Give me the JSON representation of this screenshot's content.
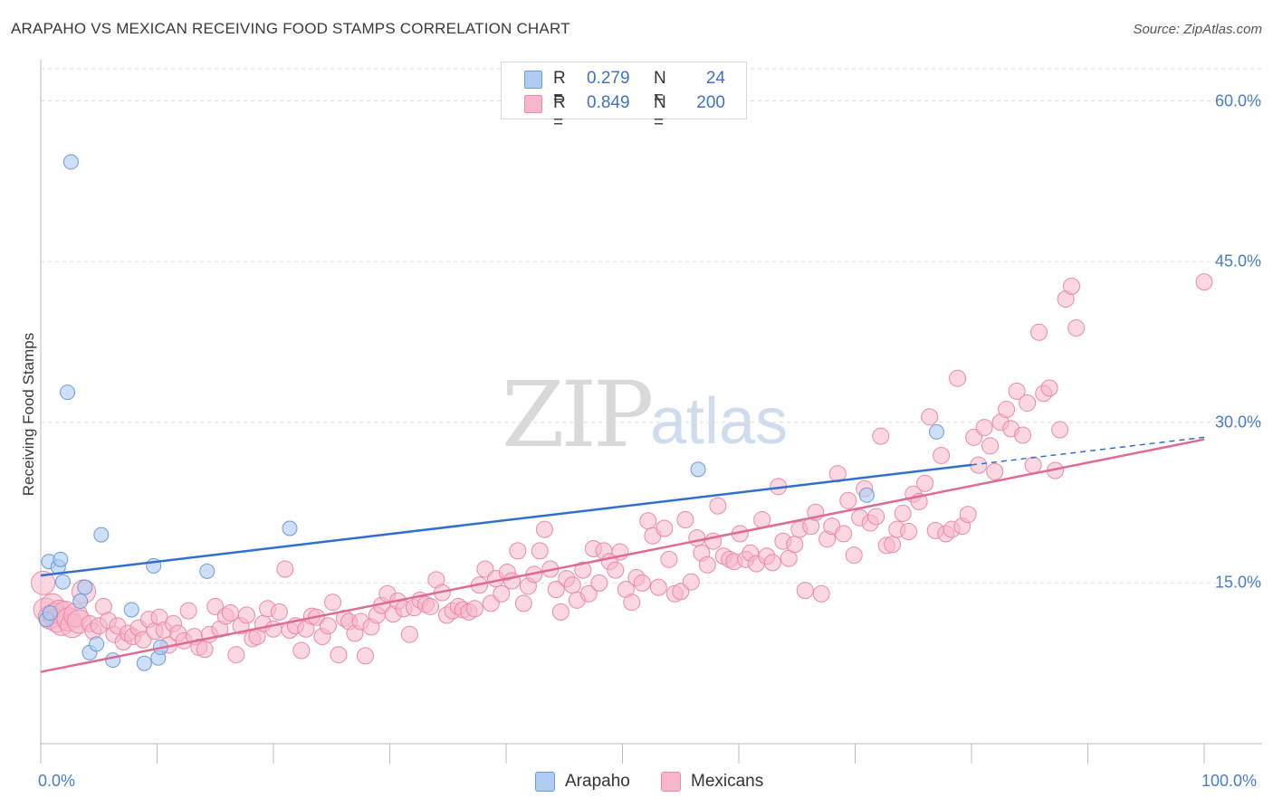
{
  "title": "ARAPAHO VS MEXICAN RECEIVING FOOD STAMPS CORRELATION CHART",
  "source": "Source: ZipAtlas.com",
  "watermark": {
    "zip": "ZIP",
    "atlas": "atlas"
  },
  "legend": {
    "rows": [
      {
        "r_label": "R =",
        "r_value": "0.279",
        "n_label": "N =",
        "n_value": "24"
      },
      {
        "r_label": "R =",
        "r_value": "0.849",
        "n_label": "N =",
        "n_value": "200"
      }
    ],
    "bottom": [
      "Arapaho",
      "Mexicans"
    ]
  },
  "colors": {
    "arapaho_fill": "#aecbf2",
    "arapaho_stroke": "#6d9ad8",
    "arapaho_line": "#2f6fd0",
    "mexican_fill": "#f7b6c9",
    "mexican_stroke": "#e98aa8",
    "mexican_line": "#e06a93",
    "value_text": "#3f72c4",
    "grid": "#dddddd"
  },
  "chart_data": {
    "type": "scatter",
    "title": "ARAPAHO VS MEXICAN RECEIVING FOOD STAMPS CORRELATION CHART",
    "xlabel": "",
    "ylabel": "Receiving Food Stamps",
    "xlim": [
      0,
      100
    ],
    "ylim": [
      0,
      63
    ],
    "x_tick_labels": [
      "0.0%",
      "100.0%"
    ],
    "y_ticks": [
      15,
      30,
      45,
      60
    ],
    "y_tick_labels": [
      "15.0%",
      "30.0%",
      "45.0%",
      "60.0%"
    ],
    "grid": true,
    "legend_position": "top-center",
    "series": [
      {
        "name": "Arapaho",
        "R": 0.279,
        "N": 24,
        "points": [
          [
            0.5,
            11.6
          ],
          [
            0.7,
            17.0
          ],
          [
            0.8,
            12.2
          ],
          [
            1.5,
            16.5
          ],
          [
            1.7,
            17.2
          ],
          [
            1.9,
            15.1
          ],
          [
            2.3,
            32.8
          ],
          [
            2.6,
            54.3
          ],
          [
            3.4,
            13.3
          ],
          [
            3.8,
            14.6
          ],
          [
            4.2,
            8.5
          ],
          [
            4.8,
            9.3
          ],
          [
            5.2,
            19.5
          ],
          [
            6.2,
            7.8
          ],
          [
            7.8,
            12.5
          ],
          [
            8.9,
            7.5
          ],
          [
            9.7,
            16.6
          ],
          [
            10.1,
            8.0
          ],
          [
            10.3,
            9.0
          ],
          [
            14.3,
            16.1
          ],
          [
            21.4,
            20.1
          ],
          [
            56.5,
            25.6
          ],
          [
            71.0,
            23.2
          ],
          [
            77.0,
            29.1
          ]
        ],
        "trend": {
          "x0": 0,
          "y0": 15.7,
          "x1": 100,
          "y1": 28.6,
          "solid_until": 80
        }
      },
      {
        "name": "Mexicans",
        "R": 0.849,
        "N": 200,
        "points": [
          [
            0.2,
            15.0
          ],
          [
            0.4,
            12.5
          ],
          [
            0.8,
            11.8
          ],
          [
            1.0,
            12.9
          ],
          [
            1.2,
            12.0
          ],
          [
            1.4,
            11.5
          ],
          [
            1.6,
            12.3
          ],
          [
            1.8,
            11.2
          ],
          [
            2.1,
            12.2
          ],
          [
            2.4,
            11.6
          ],
          [
            2.7,
            11.0
          ],
          [
            3.0,
            12.0
          ],
          [
            3.3,
            11.4
          ],
          [
            3.7,
            14.2
          ],
          [
            4.2,
            11.2
          ],
          [
            4.5,
            10.5
          ],
          [
            5.0,
            11.0
          ],
          [
            5.4,
            12.8
          ],
          [
            5.8,
            11.5
          ],
          [
            6.3,
            10.2
          ],
          [
            6.6,
            11.0
          ],
          [
            7.1,
            9.5
          ],
          [
            7.5,
            10.3
          ],
          [
            7.9,
            10.0
          ],
          [
            8.4,
            10.8
          ],
          [
            8.8,
            9.7
          ],
          [
            9.3,
            11.6
          ],
          [
            9.8,
            10.5
          ],
          [
            10.2,
            11.8
          ],
          [
            10.6,
            10.6
          ],
          [
            11.0,
            9.2
          ],
          [
            11.4,
            11.2
          ],
          [
            11.8,
            10.3
          ],
          [
            12.3,
            9.6
          ],
          [
            12.7,
            12.4
          ],
          [
            13.2,
            10.0
          ],
          [
            13.6,
            9.0
          ],
          [
            14.1,
            8.8
          ],
          [
            14.5,
            10.2
          ],
          [
            15.0,
            12.8
          ],
          [
            15.4,
            10.7
          ],
          [
            15.9,
            11.9
          ],
          [
            16.3,
            12.2
          ],
          [
            16.8,
            8.3
          ],
          [
            17.2,
            11.0
          ],
          [
            17.7,
            12.0
          ],
          [
            18.2,
            9.8
          ],
          [
            18.6,
            10.0
          ],
          [
            19.1,
            11.2
          ],
          [
            19.5,
            12.6
          ],
          [
            20.0,
            10.7
          ],
          [
            20.5,
            12.3
          ],
          [
            21.0,
            16.3
          ],
          [
            21.4,
            10.6
          ],
          [
            21.9,
            11.0
          ],
          [
            22.4,
            8.7
          ],
          [
            22.8,
            10.7
          ],
          [
            23.3,
            11.9
          ],
          [
            23.7,
            11.8
          ],
          [
            24.2,
            10.0
          ],
          [
            24.7,
            11.0
          ],
          [
            25.1,
            13.2
          ],
          [
            25.6,
            8.3
          ],
          [
            26.1,
            11.7
          ],
          [
            26.5,
            11.4
          ],
          [
            27.0,
            10.3
          ],
          [
            27.5,
            11.4
          ],
          [
            27.9,
            8.2
          ],
          [
            28.4,
            10.9
          ],
          [
            28.9,
            12.0
          ],
          [
            29.3,
            12.9
          ],
          [
            29.8,
            14.0
          ],
          [
            30.3,
            12.1
          ],
          [
            30.7,
            13.3
          ],
          [
            31.2,
            12.6
          ],
          [
            31.7,
            10.2
          ],
          [
            32.1,
            12.7
          ],
          [
            32.6,
            13.4
          ],
          [
            33.1,
            13.0
          ],
          [
            33.5,
            12.8
          ],
          [
            34.0,
            15.3
          ],
          [
            34.5,
            14.1
          ],
          [
            34.9,
            12.0
          ],
          [
            35.4,
            12.4
          ],
          [
            35.9,
            12.8
          ],
          [
            36.3,
            12.5
          ],
          [
            36.8,
            12.3
          ],
          [
            37.3,
            12.6
          ],
          [
            37.7,
            14.8
          ],
          [
            38.2,
            16.3
          ],
          [
            38.7,
            13.1
          ],
          [
            39.1,
            15.4
          ],
          [
            39.6,
            14.0
          ],
          [
            40.1,
            16.0
          ],
          [
            40.5,
            15.2
          ],
          [
            41.0,
            18.0
          ],
          [
            41.5,
            13.1
          ],
          [
            41.9,
            14.7
          ],
          [
            42.4,
            15.8
          ],
          [
            42.9,
            18.0
          ],
          [
            43.3,
            20.0
          ],
          [
            43.8,
            16.3
          ],
          [
            44.3,
            14.4
          ],
          [
            44.7,
            12.3
          ],
          [
            45.2,
            15.4
          ],
          [
            45.7,
            14.8
          ],
          [
            46.1,
            13.4
          ],
          [
            46.6,
            16.2
          ],
          [
            47.1,
            14.0
          ],
          [
            47.5,
            18.2
          ],
          [
            48.0,
            15.0
          ],
          [
            48.4,
            18.0
          ],
          [
            48.9,
            17.0
          ],
          [
            49.4,
            16.2
          ],
          [
            49.8,
            17.9
          ],
          [
            50.3,
            14.4
          ],
          [
            50.8,
            13.2
          ],
          [
            51.2,
            15.5
          ],
          [
            51.7,
            15.0
          ],
          [
            52.2,
            20.8
          ],
          [
            52.6,
            19.4
          ],
          [
            53.1,
            14.6
          ],
          [
            53.6,
            20.1
          ],
          [
            54.0,
            17.2
          ],
          [
            54.5,
            14.0
          ],
          [
            55.0,
            14.2
          ],
          [
            55.4,
            20.9
          ],
          [
            55.9,
            15.1
          ],
          [
            56.4,
            19.2
          ],
          [
            56.8,
            17.8
          ],
          [
            57.3,
            16.7
          ],
          [
            57.8,
            18.9
          ],
          [
            58.2,
            22.2
          ],
          [
            58.7,
            17.5
          ],
          [
            59.2,
            17.2
          ],
          [
            59.6,
            17.0
          ],
          [
            60.1,
            19.6
          ],
          [
            60.6,
            17.2
          ],
          [
            61.0,
            17.8
          ],
          [
            61.5,
            16.8
          ],
          [
            62.0,
            20.9
          ],
          [
            62.4,
            17.5
          ],
          [
            62.9,
            16.9
          ],
          [
            63.4,
            24.0
          ],
          [
            63.8,
            18.9
          ],
          [
            64.3,
            17.3
          ],
          [
            64.8,
            18.6
          ],
          [
            65.2,
            20.0
          ],
          [
            65.7,
            14.3
          ],
          [
            66.2,
            20.3
          ],
          [
            66.6,
            21.6
          ],
          [
            67.1,
            14.0
          ],
          [
            67.6,
            19.1
          ],
          [
            68.0,
            20.3
          ],
          [
            68.5,
            25.2
          ],
          [
            69.0,
            19.6
          ],
          [
            69.4,
            22.7
          ],
          [
            69.9,
            17.6
          ],
          [
            70.4,
            21.1
          ],
          [
            70.8,
            23.8
          ],
          [
            71.3,
            20.6
          ],
          [
            71.8,
            21.2
          ],
          [
            72.2,
            28.7
          ],
          [
            72.7,
            18.5
          ],
          [
            73.2,
            18.6
          ],
          [
            73.6,
            20.0
          ],
          [
            74.1,
            21.5
          ],
          [
            74.6,
            19.8
          ],
          [
            75.0,
            23.3
          ],
          [
            75.5,
            22.6
          ],
          [
            76.0,
            24.3
          ],
          [
            76.4,
            30.5
          ],
          [
            76.9,
            19.9
          ],
          [
            77.4,
            26.9
          ],
          [
            77.8,
            19.6
          ],
          [
            78.3,
            20.0
          ],
          [
            78.8,
            34.1
          ],
          [
            79.2,
            20.3
          ],
          [
            79.7,
            21.4
          ],
          [
            80.2,
            28.6
          ],
          [
            80.6,
            26.0
          ],
          [
            81.1,
            29.5
          ],
          [
            81.6,
            27.8
          ],
          [
            82.0,
            25.4
          ],
          [
            82.5,
            30.0
          ],
          [
            83.0,
            31.2
          ],
          [
            83.4,
            29.4
          ],
          [
            83.9,
            32.9
          ],
          [
            84.4,
            28.8
          ],
          [
            84.8,
            31.8
          ],
          [
            85.3,
            26.0
          ],
          [
            85.8,
            38.4
          ],
          [
            86.2,
            32.7
          ],
          [
            86.7,
            33.2
          ],
          [
            87.2,
            25.5
          ],
          [
            87.6,
            29.3
          ],
          [
            88.1,
            41.5
          ],
          [
            88.6,
            42.7
          ],
          [
            89.0,
            38.8
          ],
          [
            100.0,
            43.1
          ]
        ],
        "trend": {
          "x0": 0,
          "y0": 6.7,
          "x1": 100,
          "y1": 28.4
        }
      }
    ]
  }
}
